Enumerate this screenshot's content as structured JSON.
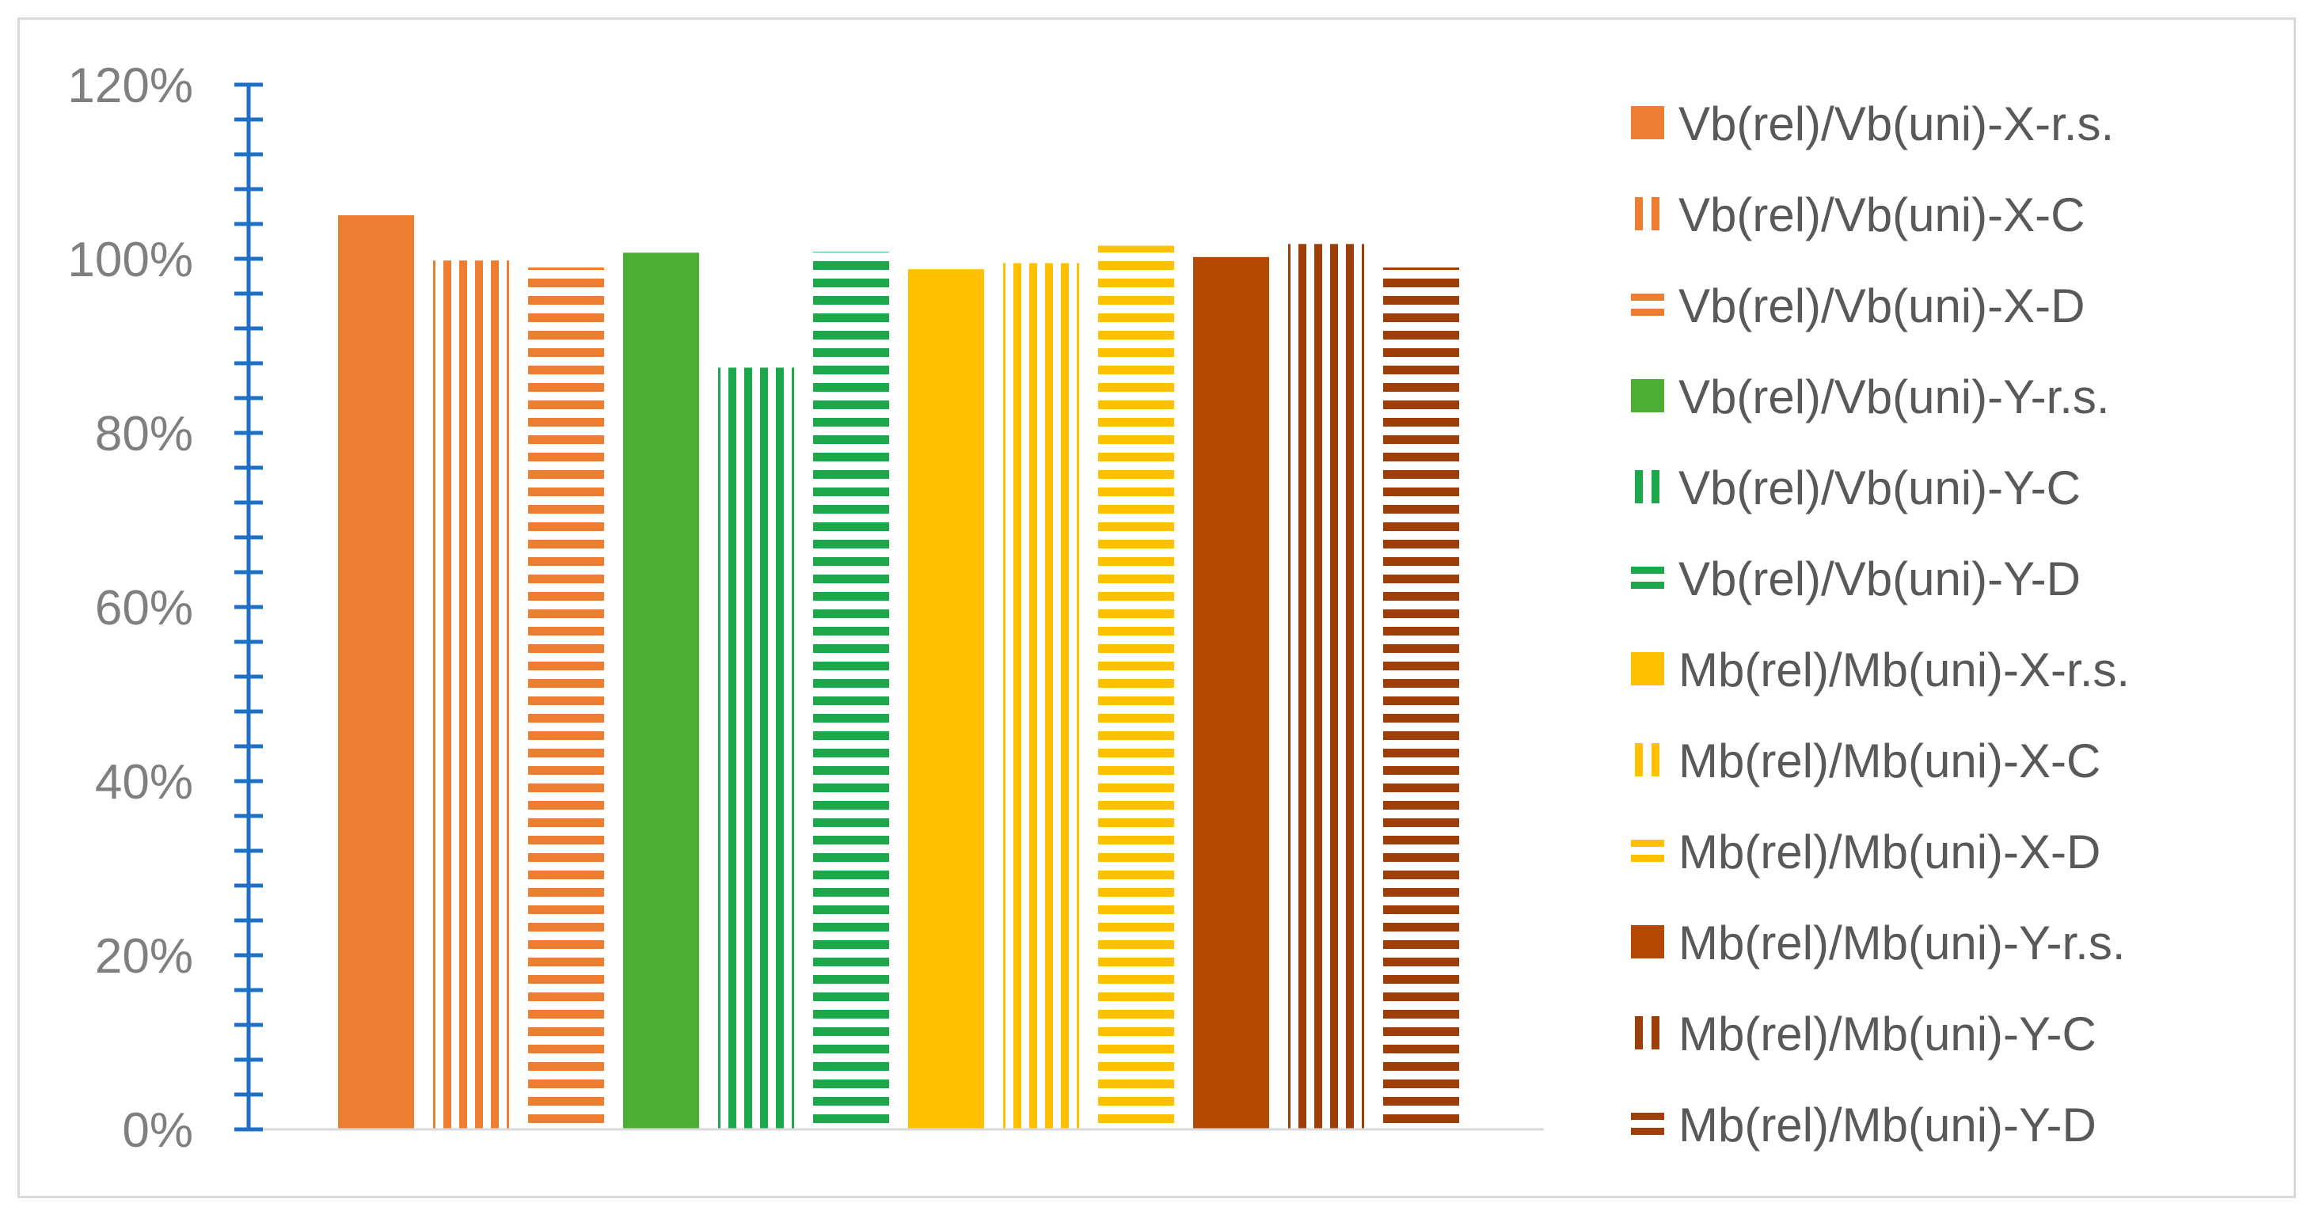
{
  "chart_data": {
    "type": "bar",
    "title": "",
    "xlabel": "",
    "ylabel": "",
    "ylim": [
      0,
      1.2
    ],
    "yticks": [
      "0%",
      "20%",
      "40%",
      "60%",
      "80%",
      "100%",
      "120%"
    ],
    "grid": false,
    "legend_position": "right",
    "series": [
      {
        "name": "Vb(rel)/Vb(uni)-X-r.s.",
        "value": 1.05,
        "color": "#ED7D31",
        "pattern": "solid"
      },
      {
        "name": "Vb(rel)/Vb(uni)-X-C",
        "value": 0.998,
        "color": "#ED7D31",
        "pattern": "vertical"
      },
      {
        "name": "Vb(rel)/Vb(uni)-X-D",
        "value": 0.99,
        "color": "#ED7D31",
        "pattern": "horizontal"
      },
      {
        "name": "Vb(rel)/Vb(uni)-Y-r.s.",
        "value": 1.007,
        "color": "#4CAF33",
        "pattern": "solid"
      },
      {
        "name": "Vb(rel)/Vb(uni)-Y-C",
        "value": 0.875,
        "color": "#1CA84A",
        "pattern": "vertical"
      },
      {
        "name": "Vb(rel)/Vb(uni)-Y-D",
        "value": 1.008,
        "color": "#1CA84A",
        "pattern": "horizontal"
      },
      {
        "name": "Mb(rel)/Mb(uni)-X-r.s.",
        "value": 0.988,
        "color": "#FFC000",
        "pattern": "solid"
      },
      {
        "name": "Mb(rel)/Mb(uni)-X-C",
        "value": 0.995,
        "color": "#FFC000",
        "pattern": "vertical"
      },
      {
        "name": "Mb(rel)/Mb(uni)-X-D",
        "value": 1.015,
        "color": "#FFC000",
        "pattern": "horizontal"
      },
      {
        "name": "Mb(rel)/Mb(uni)-Y-r.s.",
        "value": 1.002,
        "color": "#B54800",
        "pattern": "solid"
      },
      {
        "name": "Mb(rel)/Mb(uni)-Y-C",
        "value": 1.017,
        "color": "#9E3F0A",
        "pattern": "vertical"
      },
      {
        "name": "Mb(rel)/Mb(uni)-Y-D",
        "value": 0.99,
        "color": "#9E3F0A",
        "pattern": "horizontal"
      }
    ],
    "axis_color": "#1F6FC5",
    "tick_label_color": "#7F7F7F",
    "legend_text_color": "#595959"
  }
}
